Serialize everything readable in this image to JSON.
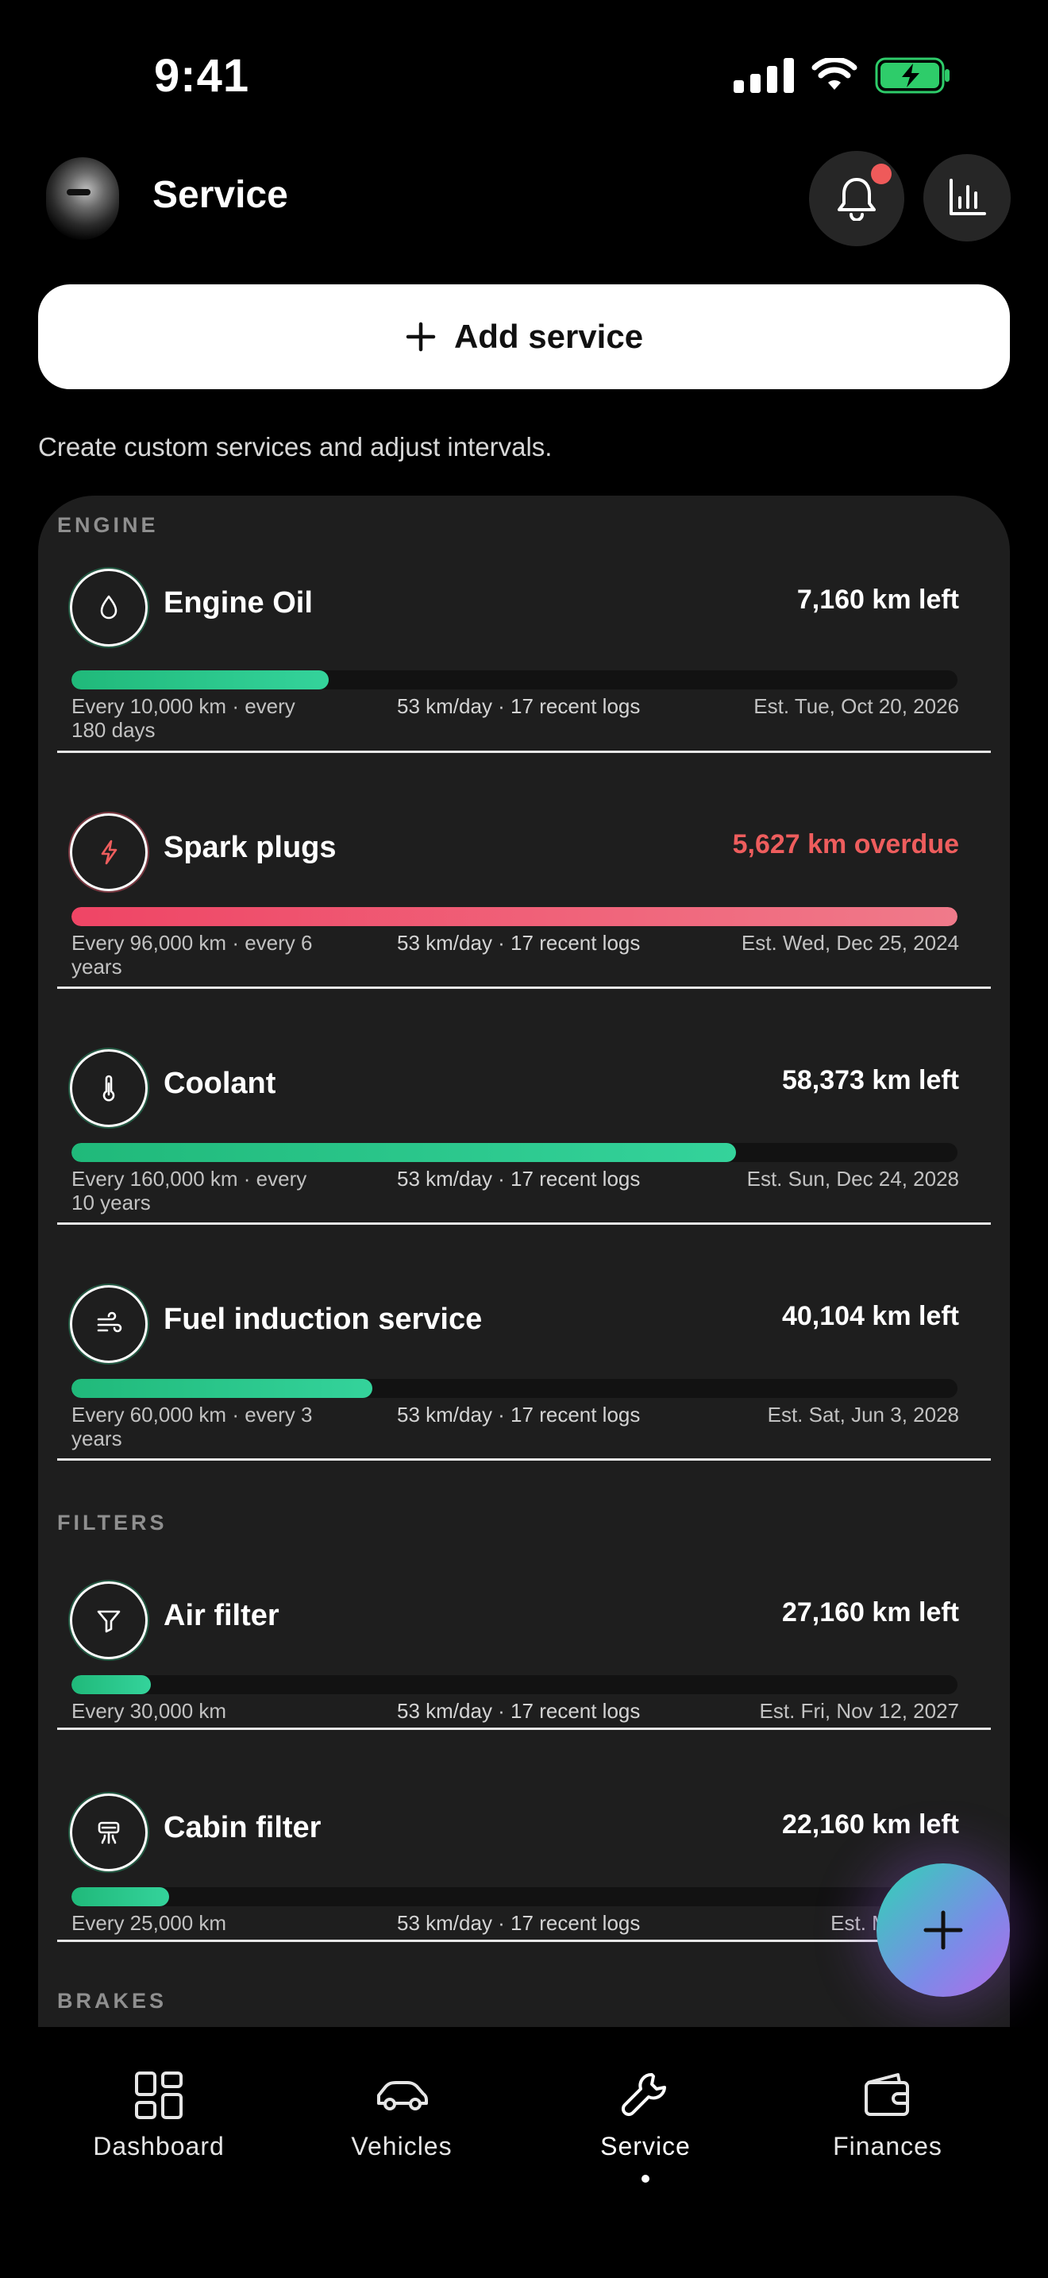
{
  "status_bar": {
    "time": "9:41"
  },
  "header": {
    "title": "Service"
  },
  "add_service": {
    "label": "Add service"
  },
  "subtitle": "Create custom services and adjust intervals.",
  "sections": [
    {
      "label": "ENGINE",
      "items": [
        {
          "name": "Engine Oil",
          "icon": "drop-icon",
          "status": "7,160 km left",
          "overdue": false,
          "progress": 0.29,
          "interval": "Every 10,000 km · every 180 days",
          "usage": "53 km/day · 17 recent logs",
          "estimate": "Est. Tue, Oct 20, 2026"
        },
        {
          "name": "Spark plugs",
          "icon": "lightning-icon",
          "status": "5,627 km overdue",
          "overdue": true,
          "progress": 1.0,
          "interval": "Every 96,000 km · every 6 years",
          "usage": "53 km/day · 17 recent logs",
          "estimate": "Est. Wed, Dec 25, 2024"
        },
        {
          "name": "Coolant",
          "icon": "thermometer-icon",
          "status": "58,373 km left",
          "overdue": false,
          "progress": 0.75,
          "interval": "Every 160,000 km · every 10 years",
          "usage": "53 km/day · 17 recent logs",
          "estimate": "Est. Sun, Dec 24, 2028"
        },
        {
          "name": "Fuel induction service",
          "icon": "wind-icon",
          "status": "40,104 km left",
          "overdue": false,
          "progress": 0.34,
          "interval": "Every 60,000 km · every 3 years",
          "usage": "53 km/day · 17 recent logs",
          "estimate": "Est. Sat, Jun 3, 2028"
        }
      ]
    },
    {
      "label": "FILTERS",
      "items": [
        {
          "name": "Air filter",
          "icon": "funnel-icon",
          "status": "27,160 km left",
          "overdue": false,
          "progress": 0.09,
          "interval": "Every 30,000 km",
          "usage": "53 km/day · 17 recent logs",
          "estimate": "Est. Fri, Nov 12, 2027"
        },
        {
          "name": "Cabin filter",
          "icon": "air-vent-icon",
          "status": "22,160 km left",
          "overdue": false,
          "progress": 0.11,
          "interval": "Every 25,000 km",
          "usage": "53 km/day · 17 recent logs",
          "estimate": "Est. Mon, Aug"
        }
      ]
    },
    {
      "label": "BRAKES",
      "items": []
    }
  ],
  "tabs": [
    {
      "label": "Dashboard",
      "icon": "grid-icon",
      "active": false
    },
    {
      "label": "Vehicles",
      "icon": "car-icon",
      "active": false
    },
    {
      "label": "Service",
      "icon": "wrench-icon",
      "active": true
    },
    {
      "label": "Finances",
      "icon": "wallet-icon",
      "active": false
    }
  ],
  "colors": {
    "accent_green": "#2ecc8a",
    "danger": "#ee5d5d",
    "card_bg": "#1e1e1e"
  }
}
